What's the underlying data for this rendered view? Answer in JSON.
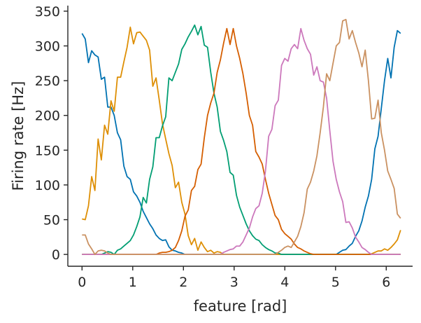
{
  "chart_data": {
    "type": "line",
    "title": "",
    "xlabel": "feature [rad]",
    "ylabel": "Firing rate [Hz]",
    "xlim": [
      -0.28,
      6.52
    ],
    "ylim": [
      -17,
      358
    ],
    "xticks": [
      0,
      1,
      2,
      3,
      4,
      5,
      6
    ],
    "yticks": [
      0,
      50,
      100,
      150,
      200,
      250,
      300,
      350
    ],
    "grid": false,
    "legend": "none",
    "n_points": 100,
    "x_range": [
      0,
      6.2832
    ],
    "series": [
      {
        "color": "#0072b2",
        "peaks": [
          [
            0.0,
            0.0
          ],
          [
            0.13,
            0.46
          ],
          [
            0.32,
            0.0
          ],
          [
            0.51,
            2.2
          ],
          [
            0.83,
            -0.02
          ],
          [
            1.0,
            0.0
          ],
          [
            1.13,
            0.44
          ],
          [
            1.35,
            0.0
          ],
          [
            1.65,
            1.5
          ],
          [
            1.72,
            0.0
          ],
          [
            5.35,
            0.0
          ],
          [
            5.9,
            2.3
          ],
          [
            6.28,
            0.0
          ]
        ],
        "values": [
          318,
          310,
          276,
          293,
          287,
          284,
          252,
          255,
          212,
          212,
          200,
          175,
          165,
          127,
          112,
          108,
          90,
          84,
          75,
          62,
          53,
          44,
          37,
          28,
          23,
          20,
          21,
          11,
          6,
          5,
          3,
          2,
          0,
          0,
          0,
          0,
          0,
          0,
          0,
          0,
          0,
          0,
          0,
          0,
          0,
          0,
          0,
          0,
          0,
          0,
          0,
          0,
          0,
          0,
          0,
          0,
          0,
          0,
          0,
          0,
          0,
          0,
          0,
          0,
          0,
          0,
          0,
          0,
          0,
          0,
          0,
          0,
          0,
          0,
          0,
          0,
          0,
          0,
          0,
          0,
          3,
          6,
          7,
          12,
          16,
          26,
          34,
          48,
          68,
          84,
          108,
          152,
          170,
          210,
          250,
          282,
          254,
          298,
          322,
          318
        ]
      },
      {
        "color": "#de8f05",
        "values": [
          51,
          50,
          70,
          112,
          92,
          166,
          136,
          186,
          173,
          221,
          206,
          255,
          255,
          277,
          298,
          327,
          303,
          319,
          320,
          314,
          308,
          294,
          242,
          254,
          222,
          188,
          166,
          145,
          128,
          96,
          104,
          75,
          58,
          27,
          14,
          23,
          6,
          18,
          10,
          4,
          6,
          2,
          4,
          3,
          0,
          0,
          0,
          0,
          0,
          0,
          0,
          0,
          0,
          0,
          0,
          0,
          0,
          0,
          0,
          0,
          0,
          0,
          0,
          0,
          0,
          0,
          0,
          0,
          0,
          0,
          0,
          0,
          0,
          0,
          0,
          0,
          0,
          0,
          0,
          0,
          0,
          0,
          0,
          0,
          0,
          0,
          0,
          0,
          0,
          0,
          1,
          3,
          5,
          5,
          8,
          6,
          10,
          15,
          21,
          35
        ]
      },
      {
        "color": "#029e73",
        "values": [
          0,
          0,
          0,
          0,
          0,
          0,
          0,
          2,
          4,
          3,
          0,
          6,
          8,
          12,
          16,
          20,
          28,
          40,
          54,
          82,
          74,
          108,
          126,
          168,
          168,
          185,
          198,
          254,
          250,
          262,
          274,
          295,
          303,
          313,
          321,
          330,
          316,
          328,
          301,
          298,
          262,
          232,
          212,
          177,
          164,
          148,
          118,
          114,
          85,
          68,
          56,
          44,
          34,
          27,
          22,
          20,
          14,
          10,
          7,
          5,
          2,
          2,
          0,
          0,
          0,
          0,
          0,
          0,
          0,
          0,
          0,
          0,
          0,
          0,
          0,
          0,
          0,
          0,
          0,
          0,
          0,
          0,
          0,
          0,
          0,
          0,
          0,
          0,
          0,
          0,
          0,
          0,
          0,
          0,
          0,
          0,
          0,
          0,
          0,
          0
        ]
      },
      {
        "color": "#d55e00",
        "values": [
          0,
          0,
          0,
          0,
          0,
          0,
          0,
          0,
          0,
          0,
          0,
          0,
          0,
          0,
          0,
          0,
          0,
          0,
          0,
          0,
          0,
          0,
          0,
          0,
          2,
          3,
          3,
          4,
          6,
          10,
          20,
          34,
          55,
          64,
          92,
          98,
          122,
          130,
          168,
          200,
          218,
          232,
          262,
          280,
          304,
          325,
          302,
          325,
          300,
          282,
          260,
          232,
          200,
          186,
          148,
          140,
          130,
          108,
          88,
          72,
          56,
          50,
          36,
          30,
          26,
          22,
          15,
          10,
          8,
          5,
          3,
          1,
          0,
          0,
          0,
          0,
          0,
          0,
          0,
          0,
          0,
          0,
          0,
          0,
          0,
          0,
          0,
          0,
          0,
          0,
          0,
          0,
          0,
          0,
          0,
          0,
          0,
          0,
          0,
          0
        ]
      },
      {
        "color": "#cc78bc",
        "values": [
          0,
          0,
          0,
          0,
          0,
          0,
          0,
          0,
          0,
          0,
          0,
          0,
          0,
          0,
          0,
          0,
          0,
          0,
          0,
          0,
          0,
          0,
          0,
          0,
          0,
          0,
          0,
          0,
          0,
          0,
          0,
          0,
          0,
          0,
          0,
          0,
          0,
          0,
          0,
          0,
          0,
          0,
          0,
          0,
          3,
          5,
          7,
          8,
          12,
          12,
          18,
          28,
          38,
          54,
          66,
          70,
          88,
          120,
          170,
          180,
          214,
          222,
          272,
          282,
          278,
          296,
          302,
          296,
          325,
          308,
          296,
          288,
          258,
          270,
          250,
          248,
          225,
          178,
          134,
          108,
          90,
          76,
          46,
          47,
          38,
          25,
          18,
          10,
          7,
          3,
          0,
          0,
          0,
          0,
          0,
          0,
          0,
          0,
          0,
          0
        ]
      },
      {
        "color": "#ca9161",
        "values": [
          28,
          28,
          15,
          8,
          0,
          5,
          6,
          5,
          2,
          0,
          0,
          0,
          0,
          0,
          0,
          0,
          0,
          0,
          0,
          0,
          0,
          0,
          0,
          0,
          0,
          0,
          0,
          0,
          0,
          0,
          0,
          0,
          0,
          0,
          0,
          0,
          0,
          0,
          0,
          0,
          0,
          0,
          0,
          0,
          0,
          0,
          0,
          0,
          0,
          0,
          0,
          0,
          0,
          0,
          0,
          0,
          0,
          0,
          0,
          0,
          0,
          3,
          6,
          10,
          12,
          10,
          18,
          26,
          40,
          60,
          94,
          104,
          120,
          142,
          175,
          212,
          260,
          250,
          275,
          300,
          305,
          336,
          338,
          310,
          322,
          305,
          290,
          270,
          294,
          250,
          195,
          196,
          222,
          175,
          150,
          120,
          108,
          95,
          58,
          52
        ]
      }
    ]
  }
}
